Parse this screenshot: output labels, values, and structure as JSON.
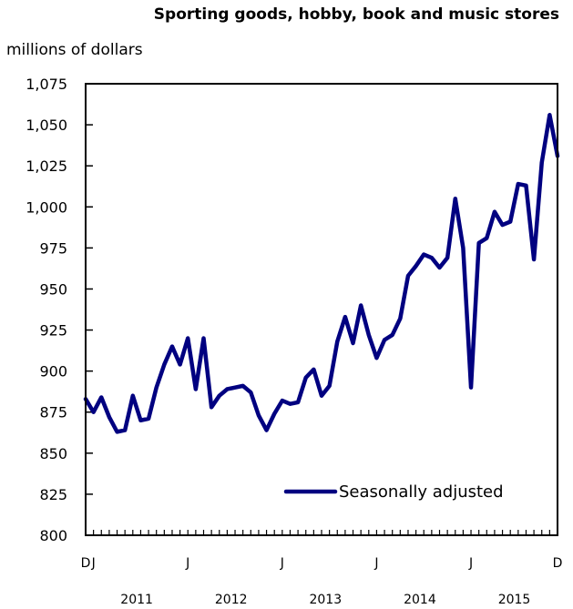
{
  "chart_data": {
    "type": "line",
    "title": "Sporting goods, hobby, book and music stores",
    "unit_label": "millions of dollars",
    "xlabel": "",
    "ylabel": "",
    "ylim": [
      800,
      1075
    ],
    "yticks": [
      800,
      825,
      850,
      875,
      900,
      925,
      950,
      975,
      1000,
      1025,
      1050,
      1075
    ],
    "ytick_labels": [
      "800",
      "825",
      "850",
      "875",
      "900",
      "925",
      "950",
      "975",
      "1,000",
      "1,025",
      "1,050",
      "1,075"
    ],
    "month_tick_labels": [
      {
        "index": 0,
        "label": "D"
      },
      {
        "index": 1,
        "label": "J"
      },
      {
        "index": 13,
        "label": "J"
      },
      {
        "index": 25,
        "label": "J"
      },
      {
        "index": 37,
        "label": "J"
      },
      {
        "index": 49,
        "label": "J"
      },
      {
        "index": 60,
        "label": "D"
      }
    ],
    "year_labels": [
      {
        "label": "2011",
        "center_index": 6.5
      },
      {
        "label": "2012",
        "center_index": 18.5
      },
      {
        "label": "2013",
        "center_index": 30.5
      },
      {
        "label": "2014",
        "center_index": 42.5
      },
      {
        "label": "2015",
        "center_index": 54.5
      }
    ],
    "legend_position": "bottom-right",
    "grid": false,
    "series": [
      {
        "name": "Seasonally adjusted",
        "color": "#000080",
        "x_start": "2010-12",
        "x_end": "2015-12",
        "values": [
          883,
          875,
          884,
          872,
          863,
          864,
          885,
          870,
          871,
          890,
          904,
          915,
          904,
          920,
          889,
          920,
          878,
          885,
          889,
          890,
          891,
          887,
          873,
          864,
          874,
          882,
          880,
          881,
          896,
          901,
          885,
          891,
          918,
          933,
          917,
          940,
          922,
          908,
          919,
          922,
          932,
          958,
          964,
          971,
          969,
          963,
          969,
          1005,
          975,
          890,
          978,
          981,
          997,
          989,
          991,
          1014,
          1013,
          968,
          1027,
          1056,
          1031
        ]
      }
    ]
  }
}
